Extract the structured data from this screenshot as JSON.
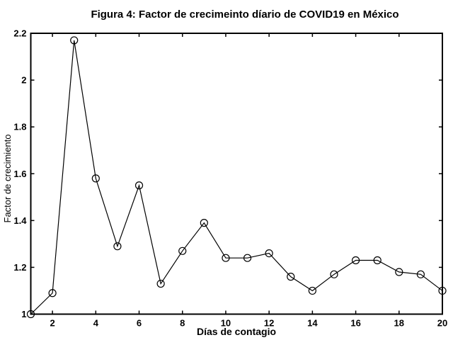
{
  "chart_data": {
    "type": "line",
    "title": "Figura 4: Factor de crecimeinto díario de COVID19 en México",
    "xlabel": "Días de contagio",
    "ylabel": "Factor de crecimiento",
    "x": [
      1,
      2,
      3,
      4,
      5,
      6,
      7,
      8,
      9,
      10,
      11,
      12,
      13,
      14,
      15,
      16,
      17,
      18,
      19,
      20
    ],
    "y": [
      1.0,
      1.09,
      2.17,
      1.58,
      1.29,
      1.55,
      1.13,
      1.27,
      1.39,
      1.24,
      1.24,
      1.26,
      1.16,
      1.1,
      1.17,
      1.23,
      1.23,
      1.18,
      1.17,
      1.1
    ],
    "xlim": [
      1,
      20
    ],
    "ylim": [
      1,
      2.2
    ],
    "xticks": {
      "values": [
        2,
        4,
        6,
        8,
        10,
        12,
        14,
        16,
        18,
        20
      ],
      "labels": [
        "2",
        "4",
        "6",
        "8",
        "10",
        "12",
        "14",
        "16",
        "18",
        "20"
      ]
    },
    "yticks": {
      "values": [
        1,
        1.2,
        1.4,
        1.6,
        1.8,
        2,
        2.2
      ],
      "labels": [
        "1",
        "1.2",
        "1.4",
        "1.6",
        "1.8",
        "2",
        "2.2"
      ]
    },
    "marker": "open-circle",
    "line_color": "#000000",
    "marker_color": "#000000",
    "background_color": "#ffffff",
    "grid": false,
    "legend": null,
    "box": true
  }
}
